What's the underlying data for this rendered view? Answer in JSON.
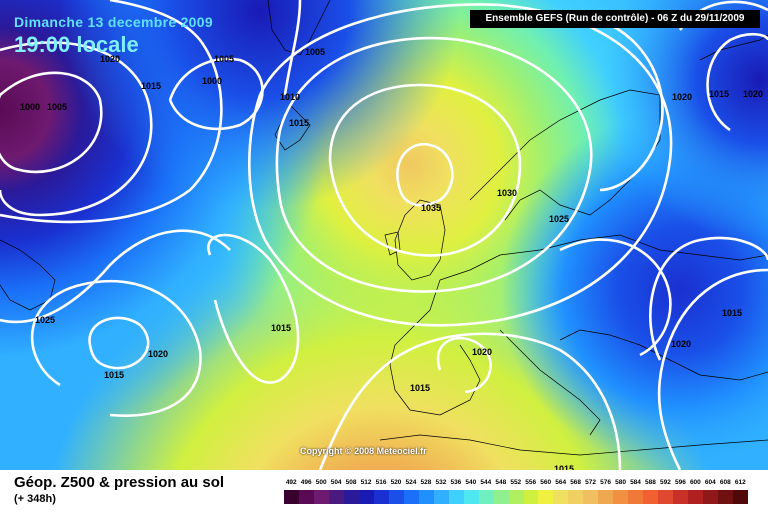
{
  "header": {
    "date": "Dimanche 13 decembre 2009",
    "time": "19:00 locale",
    "run": "Ensemble GEFS (Run de contrôle)  -  06 Z du 29/11/2009"
  },
  "copyright": "Copyright © 2008 Meteociel.fr",
  "legend": {
    "title": "Géop. Z500 & pression au sol",
    "subtitle": "(+ 348h)",
    "scale_values": [
      "492",
      "496",
      "500",
      "504",
      "508",
      "512",
      "516",
      "520",
      "524",
      "528",
      "532",
      "536",
      "540",
      "544",
      "548",
      "552",
      "556",
      "560",
      "564",
      "568",
      "572",
      "576",
      "580",
      "584",
      "588",
      "592",
      "596",
      "600",
      "604",
      "608",
      "612"
    ],
    "scale_colors": [
      "#3a0030",
      "#5a0a55",
      "#6e1a70",
      "#4a1a80",
      "#2a1a9a",
      "#1a1ab5",
      "#1a30d0",
      "#1a50e8",
      "#1a70f8",
      "#2090ff",
      "#30b0ff",
      "#40d0ff",
      "#50e8f0",
      "#70f0c0",
      "#90f090",
      "#b0f060",
      "#d0f040",
      "#f0f040",
      "#f0e060",
      "#f0d060",
      "#f0c060",
      "#f0a850",
      "#f09040",
      "#f07838",
      "#f06030",
      "#e04830",
      "#c83028",
      "#b02020",
      "#901818",
      "#701010",
      "#500808"
    ]
  },
  "isobar_labels": [
    "1020",
    "1015",
    "1005",
    "1000",
    "1000",
    "1005",
    "1010",
    "1015",
    "1035",
    "1030",
    "1025",
    "1020",
    "1015",
    "1020",
    "1015",
    "1025",
    "1020",
    "1015",
    "1015",
    "1020",
    "1015",
    "1015"
  ]
}
